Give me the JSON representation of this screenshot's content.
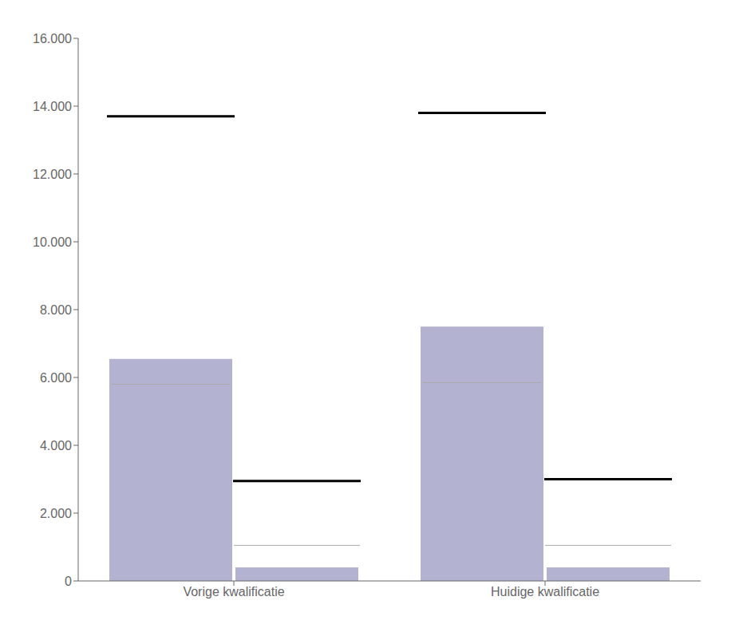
{
  "chart_data": {
    "type": "bar",
    "categories": [
      "Vorige kwalificatie",
      "Huidige kwalificatie"
    ],
    "series": [
      {
        "color": "#b3b3d1",
        "values": [
          6550,
          7500
        ],
        "median": [
          5800,
          5850
        ],
        "benchmark": [
          13700,
          13800
        ]
      },
      {
        "color": "#b3b3d1",
        "values": [
          400,
          400
        ],
        "benchmark": [
          2950,
          3000
        ],
        "reference": [
          1050,
          1050
        ]
      }
    ],
    "ylim": [
      0,
      16000
    ],
    "yticks": [
      0,
      {
        "value": 2000,
        "label": "2.000"
      },
      {
        "value": 4000,
        "label": "4.000"
      },
      {
        "value": 6000,
        "label": "6.000"
      },
      {
        "value": 8000,
        "label": "8.000"
      },
      {
        "value": 10000,
        "label": "10.000"
      },
      {
        "value": 12000,
        "label": "12.000"
      },
      {
        "value": 14000,
        "label": "14.000"
      },
      {
        "value": 16000,
        "label": "16.000"
      }
    ],
    "grid": false
  }
}
